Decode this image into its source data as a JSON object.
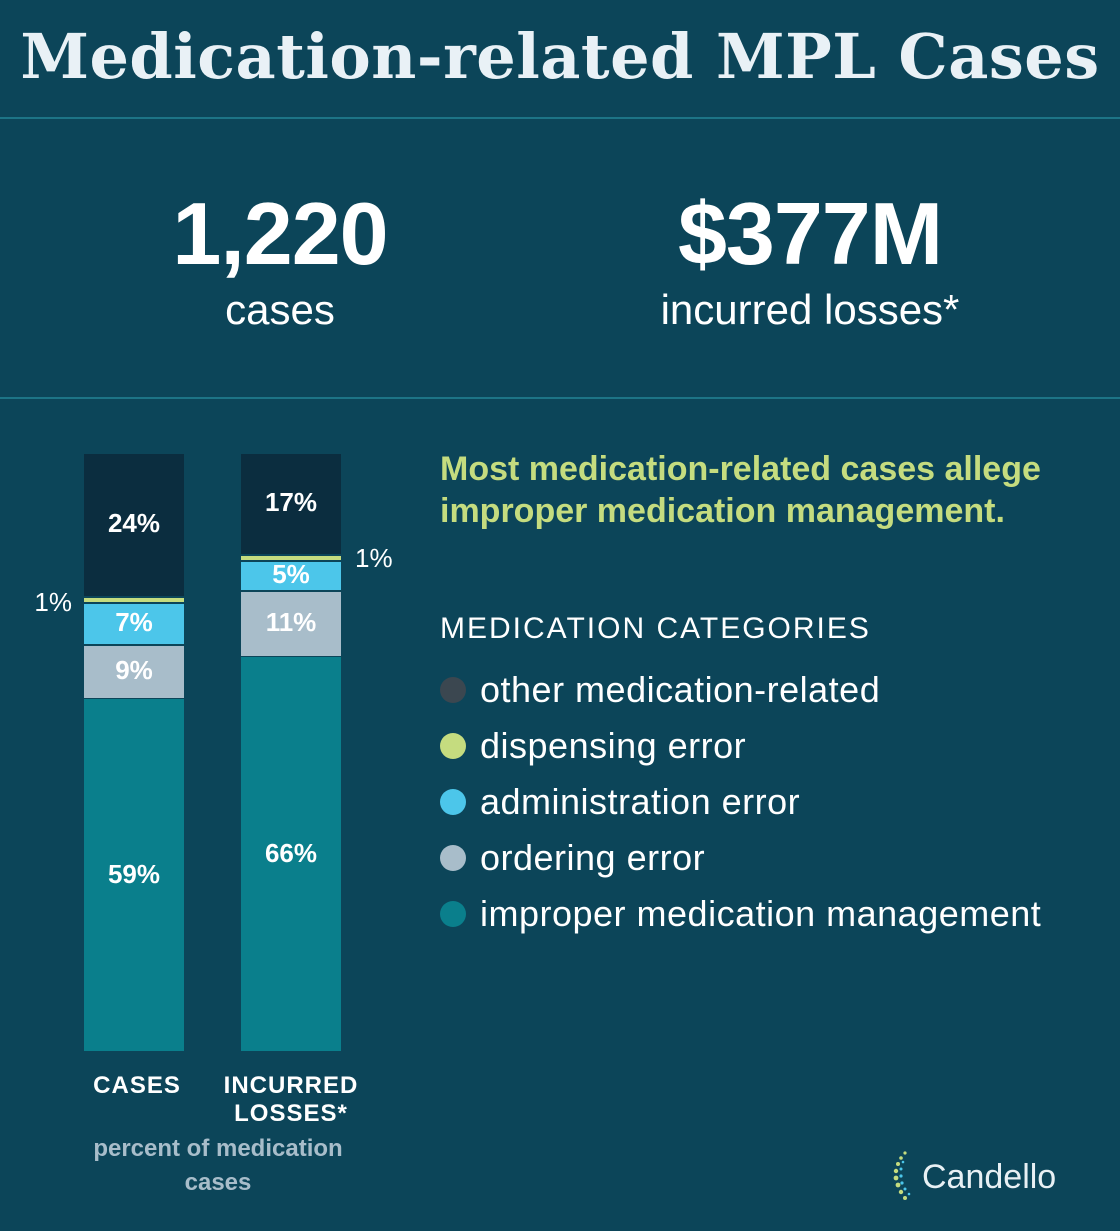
{
  "header": {
    "title": "Medication-related MPL Cases"
  },
  "stats": [
    {
      "value": "1,220",
      "label": "cases"
    },
    {
      "value": "$377M",
      "label": "incurred losses*"
    }
  ],
  "headline": "Most medication-related cases allege improper medication management.",
  "legend": {
    "title": "MEDICATION CATEGORIES",
    "items": [
      {
        "label": "other medication-related",
        "color": "#3b4750"
      },
      {
        "label": "dispensing error",
        "color": "#c5dc7f"
      },
      {
        "label": "administration error",
        "color": "#4cc6ea"
      },
      {
        "label": "ordering error",
        "color": "#a8bdca"
      },
      {
        "label": "improper medication management",
        "color": "#0a7f8c"
      }
    ]
  },
  "caption": "percent of medication cases",
  "brand": {
    "name": "Candello"
  },
  "chart_data": {
    "type": "bar",
    "stacked": true,
    "unit": "%",
    "categories": [
      "CASES",
      "INCURRED LOSSES*"
    ],
    "series": [
      {
        "name": "improper medication management",
        "values": [
          59,
          66
        ],
        "color": "#0a7f8c"
      },
      {
        "name": "ordering error",
        "values": [
          9,
          11
        ],
        "color": "#a8bdca"
      },
      {
        "name": "administration error",
        "values": [
          7,
          5
        ],
        "color": "#4cc6ea"
      },
      {
        "name": "dispensing error",
        "values": [
          1,
          1
        ],
        "color": "#c5dc7f"
      },
      {
        "name": "other medication-related",
        "values": [
          24,
          17
        ],
        "color": "#0b2d3f"
      }
    ],
    "data_labels": [
      [
        "59%",
        "66%"
      ],
      [
        "9%",
        "11%"
      ],
      [
        "7%",
        "5%"
      ],
      [
        "1%",
        "1%"
      ],
      [
        "24%",
        "17%"
      ]
    ]
  }
}
